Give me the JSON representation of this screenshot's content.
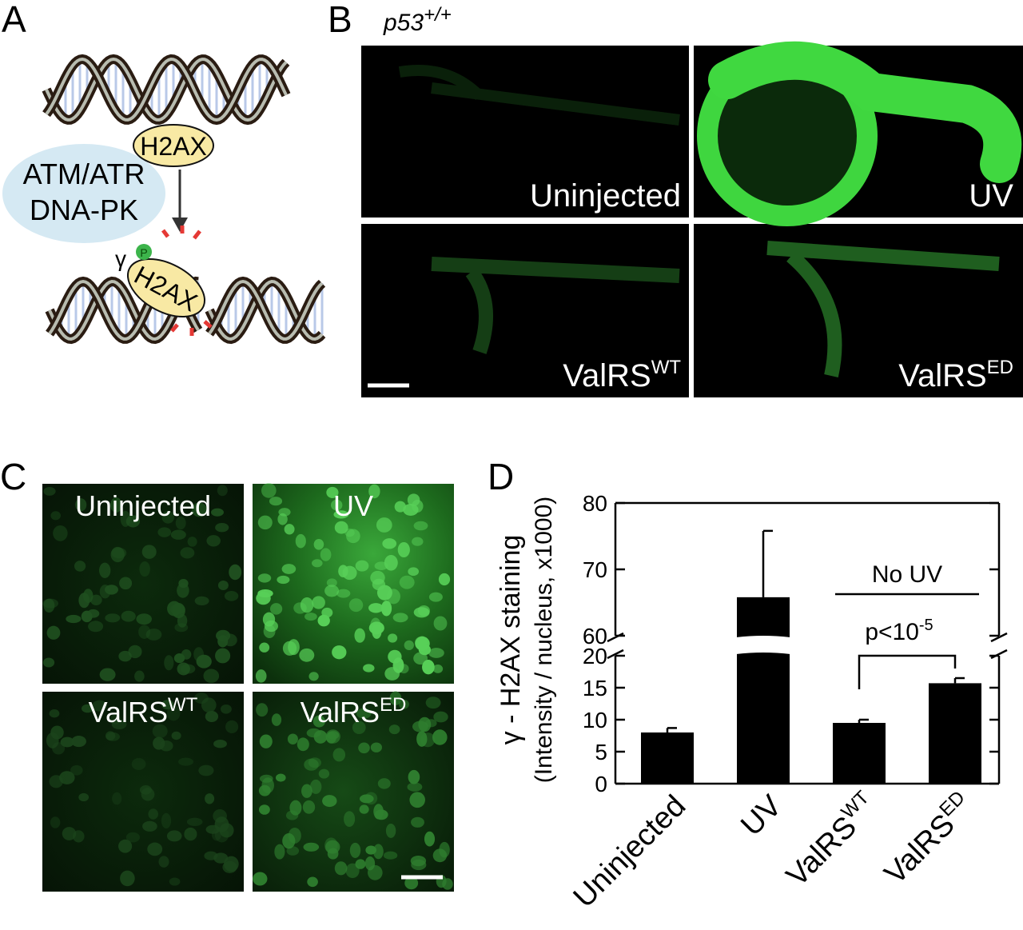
{
  "panel_a": {
    "letter": "A",
    "h2ax": "H2AX",
    "kinases": [
      "ATM/ATR",
      "DNA-PK"
    ],
    "gamma": "γ",
    "phospho": "P",
    "gamma_h2ax": "H2AX"
  },
  "panel_b": {
    "letter": "B",
    "genotype": "p53",
    "genotype_sup": "+/+",
    "images": [
      {
        "label": "Uninjected"
      },
      {
        "label": "UV"
      },
      {
        "label": "ValRS",
        "sup": "WT"
      },
      {
        "label": "ValRS",
        "sup": "ED"
      }
    ]
  },
  "panel_c": {
    "letter": "C",
    "images": [
      {
        "label": "Uninjected"
      },
      {
        "label": "UV"
      },
      {
        "label": "ValRS",
        "sup": "WT"
      },
      {
        "label": "ValRS",
        "sup": "ED"
      }
    ]
  },
  "chart_data": {
    "type": "bar",
    "panel_letter": "D",
    "ylabel": [
      "γ - H2AX staining",
      "(Intensity / nucleus, x1000)"
    ],
    "categories": [
      "Uninjected",
      "UV",
      "ValRS",
      "ValRS"
    ],
    "category_superscripts": [
      null,
      null,
      "WT",
      "ED"
    ],
    "values": [
      8,
      65.8,
      9.5,
      15.7
    ],
    "errors": [
      0.7,
      10,
      0.5,
      0.8
    ],
    "color": "#000000",
    "ylim": [
      0,
      80
    ],
    "y_break": [
      20,
      60
    ],
    "yticks": [
      0,
      5,
      10,
      15,
      20,
      60,
      70,
      80
    ],
    "annotations": [
      {
        "text": "No UV"
      },
      {
        "text": "p<10",
        "sup": "-5"
      }
    ]
  }
}
